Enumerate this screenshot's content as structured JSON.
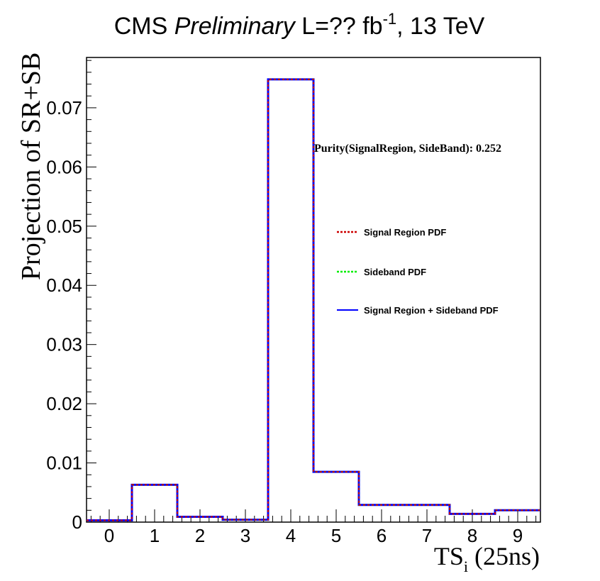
{
  "title": {
    "prefix": "CMS ",
    "italic": "Preliminary",
    "lumi": " L=?? fb",
    "lumi_exp": "-1",
    "suffix": ", 13 TeV"
  },
  "annotation": "Purity(SignalRegion, SideBand): 0.252",
  "legend": {
    "placement": "right",
    "entries": [
      {
        "label": "Signal Region PDF",
        "color": "#cc0000",
        "style": "dotted"
      },
      {
        "label": "Sideband PDF",
        "color": "#00ee00",
        "style": "dotted"
      },
      {
        "label": "Signal Region + Sideband PDF",
        "color": "#0000ff",
        "style": "solid"
      }
    ]
  },
  "chart_data": {
    "type": "step",
    "title": "CMS Preliminary L=?? fb^-1, 13 TeV",
    "xlabel": "TS",
    "xlabel_sub": "i",
    "xlabel_suffix": " (25ns)",
    "ylabel": "Projection of SR+SB",
    "xlim": [
      -0.5,
      9.5
    ],
    "ylim": [
      0,
      0.0785
    ],
    "x_ticks": [
      "0",
      "1",
      "2",
      "3",
      "4",
      "5",
      "6",
      "7",
      "8",
      "9"
    ],
    "y_ticks": [
      "0",
      "0.01",
      "0.02",
      "0.03",
      "0.04",
      "0.05",
      "0.06",
      "0.07"
    ],
    "y_tick_values": [
      0,
      0.01,
      0.02,
      0.03,
      0.04,
      0.05,
      0.06,
      0.07
    ],
    "bin_centers": [
      0,
      1,
      2,
      3,
      4,
      5,
      6,
      7,
      8,
      9
    ],
    "series": [
      {
        "name": "Signal Region PDF",
        "color": "#cc0000",
        "style": "dotted",
        "values": [
          0.0003,
          0.0063,
          0.0009,
          0.0004,
          0.0748,
          0.0085,
          0.0029,
          0.0029,
          0.0014,
          0.002
        ]
      },
      {
        "name": "Sideband PDF",
        "color": "#00ee00",
        "style": "dotted",
        "values": [
          0.0003,
          0.0063,
          0.0009,
          0.0004,
          0.0748,
          0.0085,
          0.0029,
          0.0029,
          0.0014,
          0.002
        ]
      },
      {
        "name": "Signal Region + Sideband PDF",
        "color": "#0000ff",
        "style": "solid",
        "values": [
          0.0003,
          0.0063,
          0.0009,
          0.0004,
          0.0748,
          0.0085,
          0.0029,
          0.0029,
          0.0014,
          0.002
        ]
      }
    ],
    "grid": false
  }
}
